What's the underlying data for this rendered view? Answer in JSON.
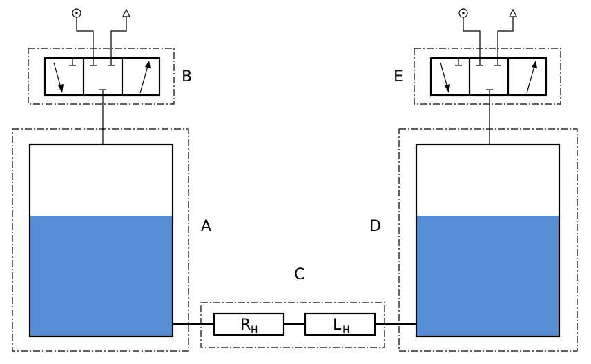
{
  "colors": {
    "water": "#558ed5",
    "stroke": "#000000",
    "background": "#ffffff"
  },
  "labels": {
    "tank_left": "A",
    "valve_left": "B",
    "pipe": "C",
    "tank_right": "D",
    "valve_right": "E",
    "resistance_main": "R",
    "resistance_sub": "H",
    "inductance_main": "L",
    "inductance_sub": "H"
  },
  "icons": {
    "supply_port": "circle-dot-icon",
    "exhaust_port": "triangle-icon",
    "valve_arrow": "arrow-icon"
  }
}
